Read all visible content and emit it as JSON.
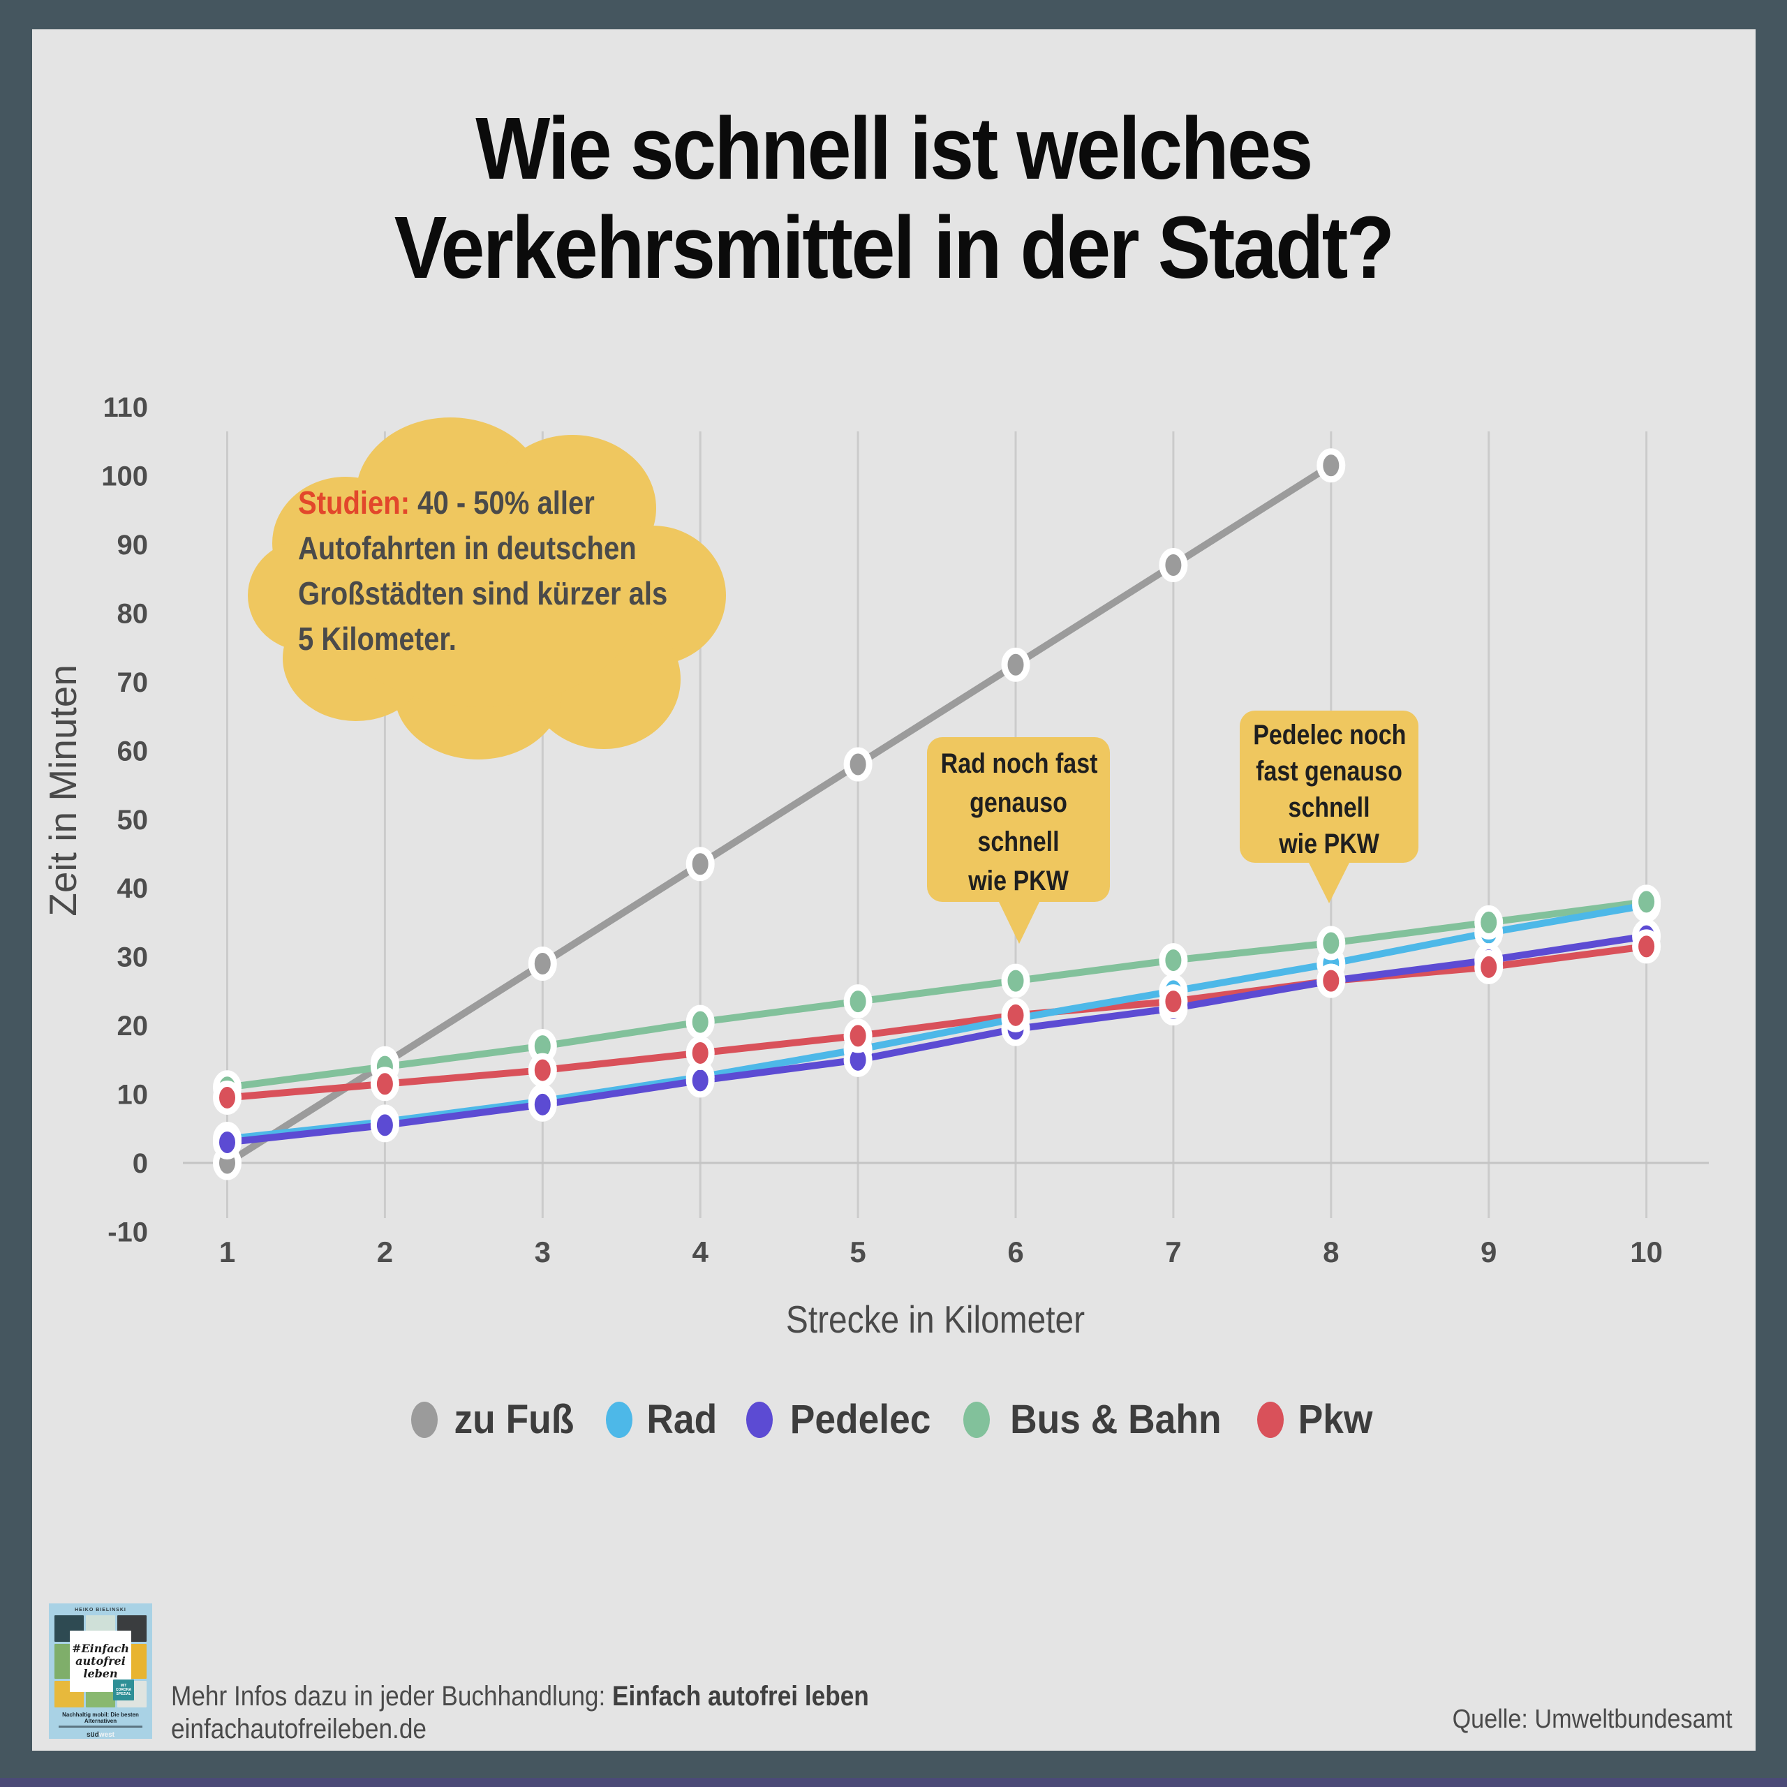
{
  "frame": {
    "border_color": "#45565F",
    "panel_color": "#E4E4E4",
    "bottom_strip_color": "#4B4A77"
  },
  "title": {
    "line1": "Wie schnell ist welches",
    "line2": "Verkehrsmittel in der Stadt?"
  },
  "cloud_callout": {
    "highlight": "Studien:",
    "highlight_color": "#E2472B",
    "fill_color": "#EFC75F",
    "line1_rest": "40 - 50% aller",
    "line2": "Autofahrten in deutschen",
    "line3": "Großstädten sind kürzer als",
    "line4": "5 Kilometer."
  },
  "annotations": [
    {
      "line1": "Rad noch fast",
      "line2": "genauso",
      "line3": "schnell",
      "line4": "wie PKW",
      "points_to_km": 6
    },
    {
      "line1": "Pedelec noch",
      "line2": "fast genauso",
      "line3": "schnell",
      "line4": "wie PKW",
      "points_to_km": 8
    }
  ],
  "chart_data": {
    "type": "line",
    "x": [
      1,
      2,
      3,
      4,
      5,
      6,
      7,
      8,
      9,
      10
    ],
    "xlabel": "Strecke in Kilometer",
    "ylabel": "Zeit in Minuten",
    "ylim": [
      -10,
      110
    ],
    "ytick_step": 10,
    "grid": "vertical-gridlines-plus-zero-line",
    "legend_position": "bottom",
    "series": [
      {
        "name": "zu Fuß",
        "color": "#9B9B9B",
        "values": [
          0,
          14.5,
          29,
          43.5,
          58,
          72.5,
          87,
          101.5,
          null,
          null
        ]
      },
      {
        "name": "Rad",
        "color": "#4DB8E8",
        "values": [
          3.5,
          6,
          9,
          12.5,
          16.5,
          21,
          25,
          29,
          33.5,
          37.5
        ]
      },
      {
        "name": "Pedelec",
        "color": "#5C4BD3",
        "values": [
          3,
          5.5,
          8.5,
          12,
          15,
          19.5,
          22.5,
          26.5,
          29.5,
          33
        ]
      },
      {
        "name": "Bus & Bahn",
        "color": "#82C19B",
        "values": [
          11,
          14,
          17,
          20.5,
          23.5,
          26.5,
          29.5,
          32,
          35,
          38
        ]
      },
      {
        "name": "Pkw",
        "color": "#D9515A",
        "values": [
          9.5,
          11.5,
          13.5,
          16,
          18.5,
          21.5,
          23.5,
          26.5,
          28.5,
          31.5
        ]
      }
    ]
  },
  "legend": {
    "items": [
      {
        "label": "zu Fuß",
        "color": "#9B9B9B"
      },
      {
        "label": "Rad",
        "color": "#4DB8E8"
      },
      {
        "label": "Pedelec",
        "color": "#5C4BD3"
      },
      {
        "label": "Bus & Bahn",
        "color": "#82C19B"
      },
      {
        "label": "Pkw",
        "color": "#D9515A"
      }
    ]
  },
  "footer": {
    "info_prefix": "Mehr Infos dazu in jeder Buchhandlung: ",
    "info_bold": "Einfach autofrei leben",
    "website": "einfachautofreileben.de",
    "source": "Quelle: Umweltbundesamt",
    "book": {
      "author": "HEIKO BIELINSKI",
      "hashtag_line1": "#Einfach",
      "hashtag_line2": "autofrei",
      "hashtag_line3": "leben",
      "badge": "MIT CORONA SPEZIAL",
      "subtitle": "Nachhaltig mobil: Die besten Alternativen",
      "publisher_bold": "süd",
      "publisher_light": "west"
    }
  }
}
